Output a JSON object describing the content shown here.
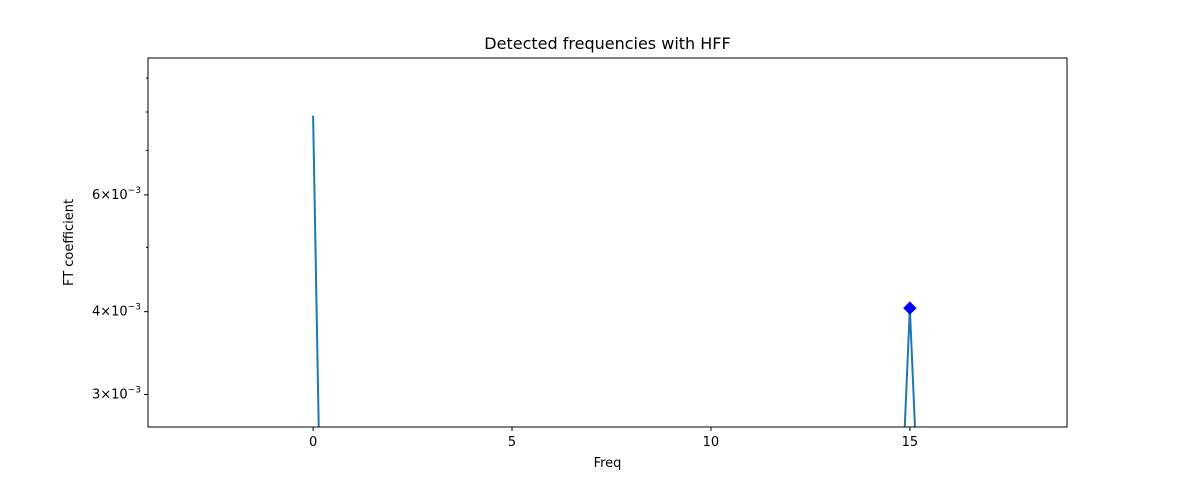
{
  "chart_data": {
    "type": "line",
    "title": "Detected frequencies with HFF",
    "xlabel": "Freq",
    "ylabel": "FT coefficient",
    "y_scale": "log",
    "grid": false,
    "xlim": [
      -4.15,
      18.95
    ],
    "ylim": [
      0.00268,
      0.00965
    ],
    "x_ticks": [
      0,
      5,
      10,
      15
    ],
    "x_tick_labels": [
      "0",
      "5",
      "10",
      "15"
    ],
    "y_ticks": [
      0.003,
      0.004,
      0.006
    ],
    "y_tick_labels": [
      {
        "mantissa": "3",
        "exponent": "−3"
      },
      {
        "mantissa": "4",
        "exponent": "−3"
      },
      {
        "mantissa": "6",
        "exponent": "−3"
      }
    ],
    "y_minor_ticks": [
      0.005,
      0.007,
      0.008,
      0.009
    ],
    "series": [
      {
        "color": "#1f77b4",
        "points": [
          [
            0,
            0.0079
          ],
          [
            0.15,
            0.0025
          ],
          [
            14.85,
            0.0025
          ],
          [
            15,
            0.00405
          ],
          [
            15.15,
            0.0025
          ]
        ]
      }
    ],
    "markers": [
      {
        "x": 15,
        "y": 0.00405,
        "shape": "diamond",
        "color": "#0000ff"
      }
    ]
  }
}
